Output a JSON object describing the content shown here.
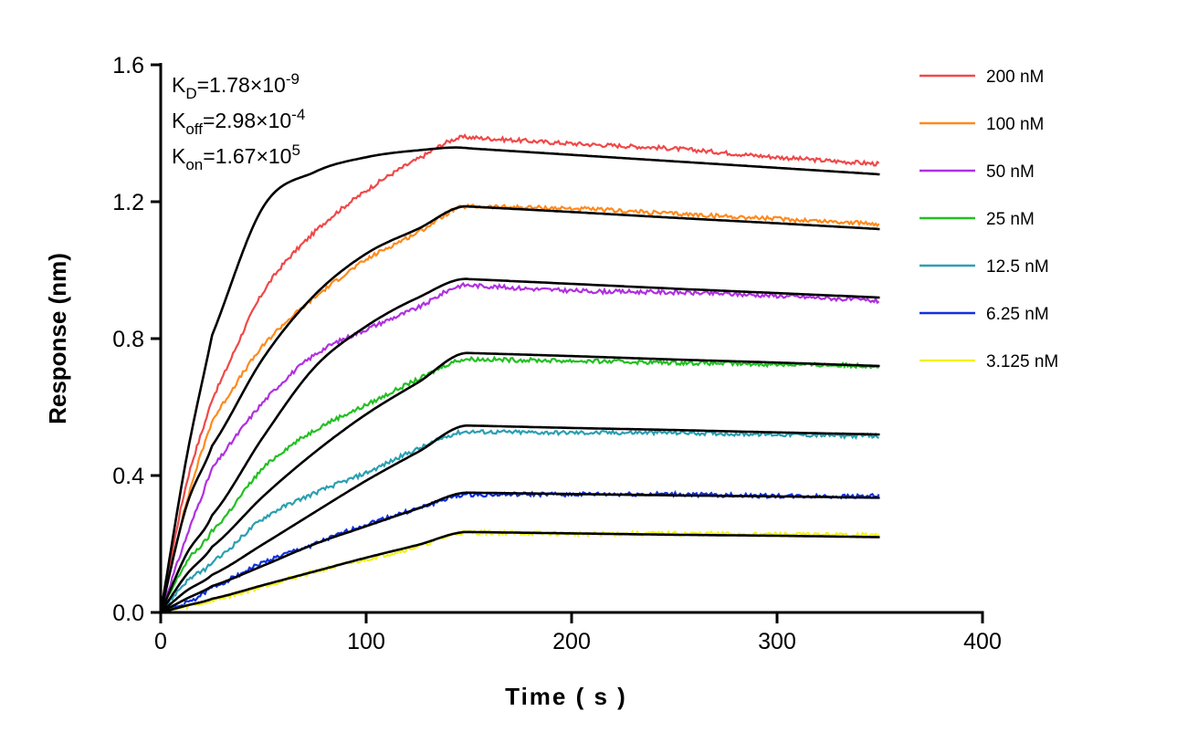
{
  "chart_data": {
    "type": "line",
    "xlabel": "Time ( s )",
    "ylabel": "Response (nm)",
    "xlim": [
      0,
      400
    ],
    "ylim": [
      0,
      1.6
    ],
    "xticks": [
      "0",
      "100",
      "200",
      "300",
      "400"
    ],
    "yticks": [
      "0.0",
      "0.4",
      "0.8",
      "1.2",
      "1.6"
    ],
    "grid": false,
    "legend_position": "right",
    "annotations": [
      {
        "main": "K",
        "sub": "D",
        "value": "=1.78×10",
        "exp": "-9"
      },
      {
        "main": "K",
        "sub": "off",
        "value": "=2.98×10",
        "exp": "-4"
      },
      {
        "main": "K",
        "sub": "on",
        "value": "=1.67×10",
        "exp": "5"
      }
    ],
    "x": [
      0,
      12.5,
      25,
      50,
      75,
      100,
      125,
      150,
      200,
      250,
      300,
      350
    ],
    "series": [
      {
        "name": "200 nM",
        "color": "#f04848",
        "values": [
          0,
          0.376,
          0.625,
          0.937,
          1.112,
          1.232,
          1.324,
          1.388,
          1.37,
          1.355,
          1.33,
          1.31
        ],
        "fit": [
          0,
          0.45,
          0.81,
          1.186,
          1.287,
          1.33,
          1.35,
          1.356,
          1.337,
          1.318,
          1.299,
          1.28
        ]
      },
      {
        "name": "100 nM",
        "color": "#ff8a1c",
        "values": [
          0,
          0.32,
          0.56,
          0.78,
          0.92,
          1.03,
          1.11,
          1.186,
          1.18,
          1.165,
          1.15,
          1.135
        ],
        "fit": [
          0,
          0.31,
          0.487,
          0.744,
          0.928,
          1.048,
          1.12,
          1.186,
          1.17,
          1.153,
          1.137,
          1.12
        ]
      },
      {
        "name": "50 nM",
        "color": "#b030e0",
        "values": [
          0,
          0.22,
          0.42,
          0.615,
          0.753,
          0.827,
          0.89,
          0.956,
          0.94,
          0.935,
          0.925,
          0.91
        ],
        "fit": [
          0,
          0.17,
          0.284,
          0.514,
          0.717,
          0.836,
          0.919,
          0.974,
          0.96,
          0.946,
          0.933,
          0.92
        ]
      },
      {
        "name": "25 nM",
        "color": "#22c022",
        "values": [
          0,
          0.146,
          0.238,
          0.422,
          0.533,
          0.606,
          0.68,
          0.74,
          0.735,
          0.73,
          0.725,
          0.72
        ],
        "fit": [
          0,
          0.11,
          0.192,
          0.34,
          0.468,
          0.579,
          0.671,
          0.758,
          0.749,
          0.739,
          0.73,
          0.72
        ]
      },
      {
        "name": "12.5 nM",
        "color": "#2a9fb2",
        "values": [
          0,
          0.09,
          0.146,
          0.275,
          0.349,
          0.408,
          0.477,
          0.528,
          0.525,
          0.525,
          0.52,
          0.515
        ],
        "fit": [
          0,
          0.063,
          0.11,
          0.2,
          0.293,
          0.385,
          0.468,
          0.546,
          0.539,
          0.533,
          0.526,
          0.52
        ]
      },
      {
        "name": "6.25 nM",
        "color": "#1030e0",
        "values": [
          0,
          0.027,
          0.073,
          0.146,
          0.2,
          0.257,
          0.303,
          0.344,
          0.345,
          0.345,
          0.34,
          0.34
        ],
        "fit": [
          0,
          0.04,
          0.077,
          0.137,
          0.2,
          0.252,
          0.303,
          0.35,
          0.346,
          0.342,
          0.339,
          0.335
        ]
      },
      {
        "name": "3.125 nM",
        "color": "#f2f21a",
        "values": [
          0,
          0.017,
          0.036,
          0.077,
          0.119,
          0.155,
          0.192,
          0.234,
          0.23,
          0.23,
          0.228,
          0.225
        ],
        "fit": [
          0,
          0.02,
          0.04,
          0.08,
          0.12,
          0.16,
          0.197,
          0.235,
          0.231,
          0.227,
          0.224,
          0.22
        ]
      }
    ],
    "fit_color": "#000000"
  }
}
